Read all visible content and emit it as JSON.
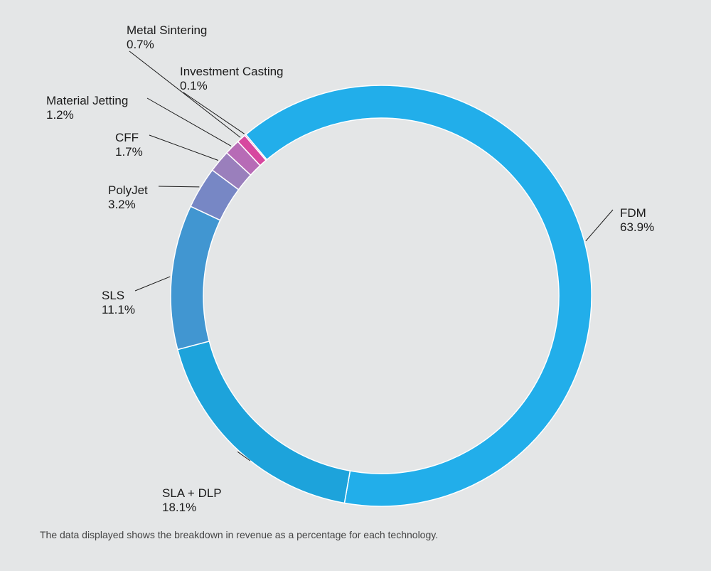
{
  "chart_data": {
    "type": "pie",
    "variant": "donut",
    "title": "",
    "slices": [
      {
        "label": "FDM",
        "value": 63.9,
        "display": "63.9%",
        "color": "#22aeea"
      },
      {
        "label": "SLA + DLP",
        "value": 18.1,
        "display": "18.1%",
        "color": "#1da3db"
      },
      {
        "label": "SLS",
        "value": 11.1,
        "display": "11.1%",
        "color": "#4196d1"
      },
      {
        "label": "PolyJet",
        "value": 3.2,
        "display": "3.2%",
        "color": "#7787c5"
      },
      {
        "label": "CFF",
        "value": 1.7,
        "display": "1.7%",
        "color": "#9a7fbc"
      },
      {
        "label": "Material Jetting",
        "value": 1.2,
        "display": "1.2%",
        "color": "#b76bb6"
      },
      {
        "label": "Metal Sintering",
        "value": 0.7,
        "display": "0.7%",
        "color": "#d7489f"
      },
      {
        "label": "Investment Casting",
        "value": 0.1,
        "display": "0.1%",
        "color": "#e53d93"
      }
    ],
    "legend": "none",
    "label_style": "leader-lines"
  },
  "footnote": "The data displayed shows the breakdown in revenue as a percentage for each technology."
}
